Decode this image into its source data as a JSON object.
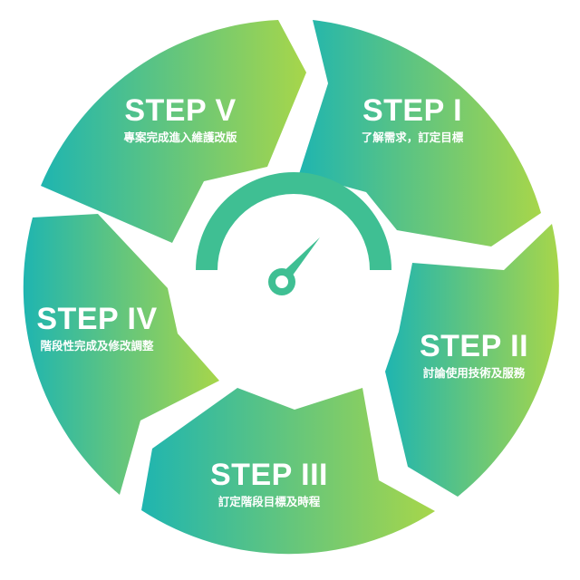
{
  "colors": {
    "teal": "#1fb5b0",
    "green": "#a7d64a",
    "center": "#ffffff"
  },
  "center_icon": "speedometer-gauge-icon",
  "steps": [
    {
      "id": "v",
      "title": "STEP V",
      "desc": "專案完成進入維護改版"
    },
    {
      "id": "i",
      "title": "STEP I",
      "desc": "了解需求，訂定目標"
    },
    {
      "id": "ii",
      "title": "STEP II",
      "desc": "討論使用技術及服務"
    },
    {
      "id": "iii",
      "title": "STEP III",
      "desc": "訂定階段目標及時程"
    },
    {
      "id": "iv",
      "title": "STEP IV",
      "desc": "階段性完成及修改調整"
    }
  ]
}
